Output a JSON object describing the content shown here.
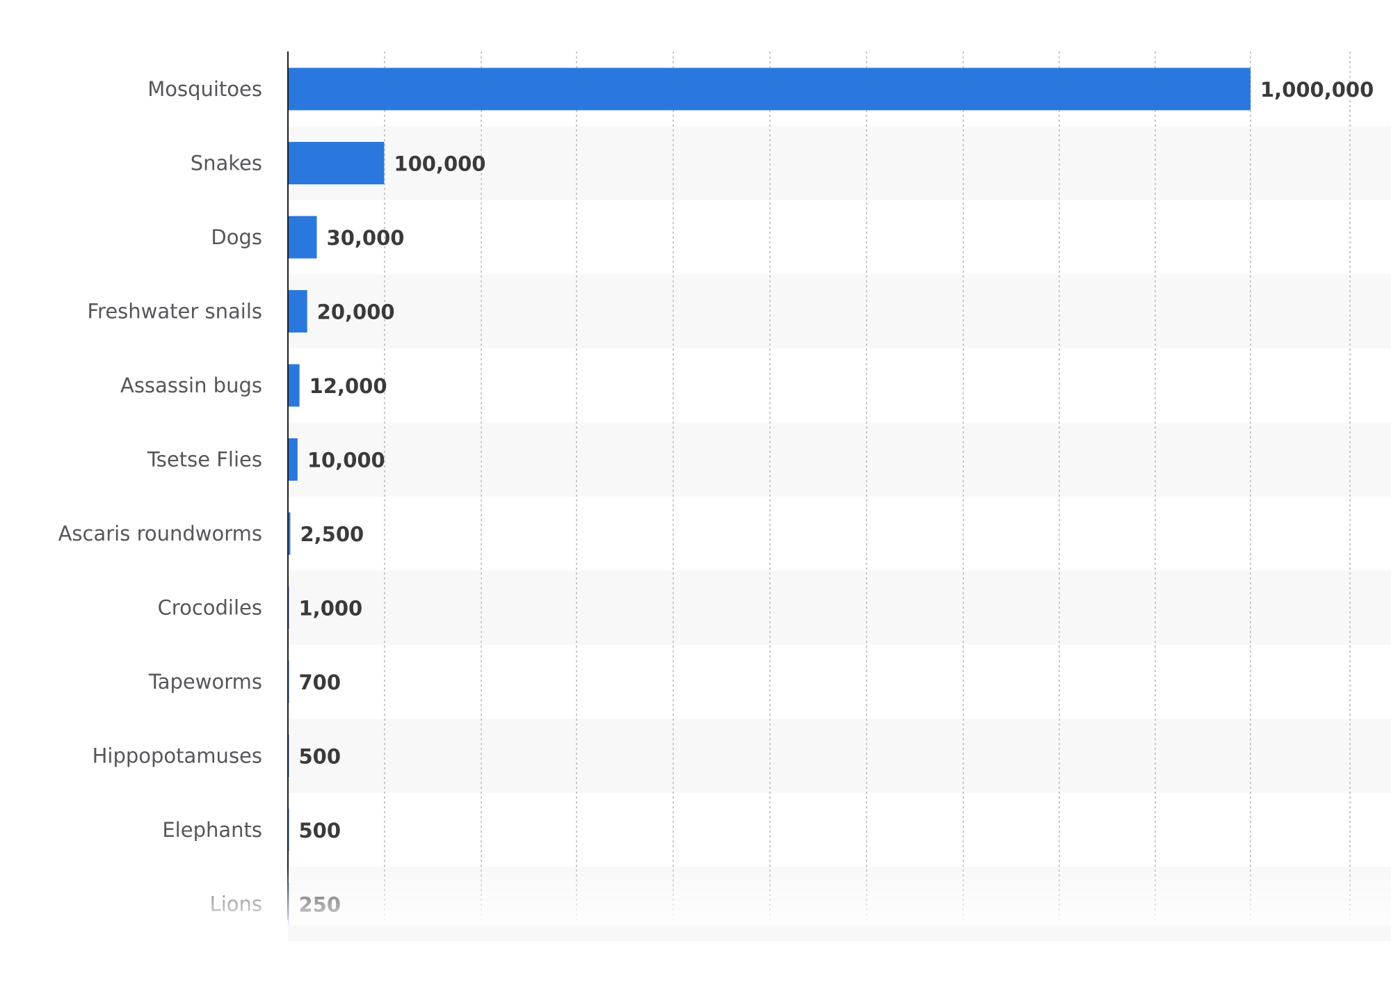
{
  "chart_data": {
    "type": "bar",
    "orientation": "horizontal",
    "categories": [
      "Mosquitoes",
      "Snakes",
      "Dogs",
      "Freshwater snails",
      "Assassin bugs",
      "Tsetse Flies",
      "Ascaris roundworms",
      "Crocodiles",
      "Tapeworms",
      "Hippopotamuses",
      "Elephants",
      "Lions"
    ],
    "values": [
      1000000,
      100000,
      30000,
      20000,
      12000,
      10000,
      2500,
      1000,
      700,
      500,
      500,
      250
    ],
    "value_labels": [
      "1,000,000",
      "100,000",
      "30,000",
      "20,000",
      "12,000",
      "10,000",
      "2,500",
      "1,000",
      "700",
      "500",
      "500",
      "250"
    ],
    "xlim": [
      0,
      1100000
    ],
    "grid": true,
    "bar_color": "#2a78dd",
    "band_color": "#f8f8f8"
  }
}
